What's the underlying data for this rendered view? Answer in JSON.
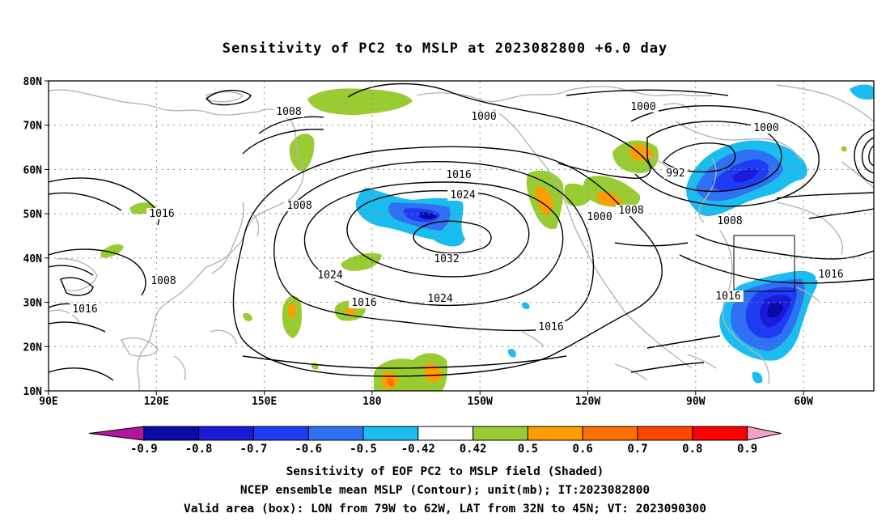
{
  "title": "Sensitivity of PC2 to MSLP at 2023082800 +6.0 day",
  "lat_labels": [
    "80N",
    "70N",
    "60N",
    "50N",
    "40N",
    "30N",
    "20N",
    "10N"
  ],
  "lon_labels": [
    "90E",
    "120E",
    "150E",
    "180",
    "150W",
    "120W",
    "90W",
    "60W"
  ],
  "contour_labels": [
    {
      "text": "1008"
    },
    {
      "text": "1000"
    },
    {
      "text": "1000"
    },
    {
      "text": "1000"
    },
    {
      "text": "1016"
    },
    {
      "text": "1024"
    },
    {
      "text": "992"
    },
    {
      "text": "1008"
    },
    {
      "text": "1016"
    },
    {
      "text": "1008"
    },
    {
      "text": "1000"
    },
    {
      "text": "1008"
    },
    {
      "text": "1032"
    },
    {
      "text": "1024"
    },
    {
      "text": "1016"
    },
    {
      "text": "1024"
    },
    {
      "text": "1008"
    },
    {
      "text": "1016"
    },
    {
      "text": "1016"
    },
    {
      "text": "1016"
    },
    {
      "text": "1016"
    }
  ],
  "colorbar": {
    "labels": [
      "-0.9",
      "-0.8",
      "-0.7",
      "-0.6",
      "-0.5",
      "-0.42",
      "0.42",
      "0.5",
      "0.6",
      "0.7",
      "0.8",
      "0.9"
    ],
    "colors": [
      "#b3159e",
      "#0a0aa6",
      "#1a1ad9",
      "#1f3cf5",
      "#2f71f2",
      "#1bbcf0",
      "#ffffff",
      "#99cc33",
      "#ff9c00",
      "#ff7000",
      "#ff4600",
      "#ff0000",
      "#f5a0c8"
    ]
  },
  "captions": [
    "Sensitivity of EOF PC2 to MSLP field (Shaded)",
    "NCEP ensemble mean MSLP (Contour); unit(mb); IT:2023082800",
    "Valid area (box): LON from 79W to 62W, LAT from 32N to 45N; VT: 2023090300"
  ]
}
